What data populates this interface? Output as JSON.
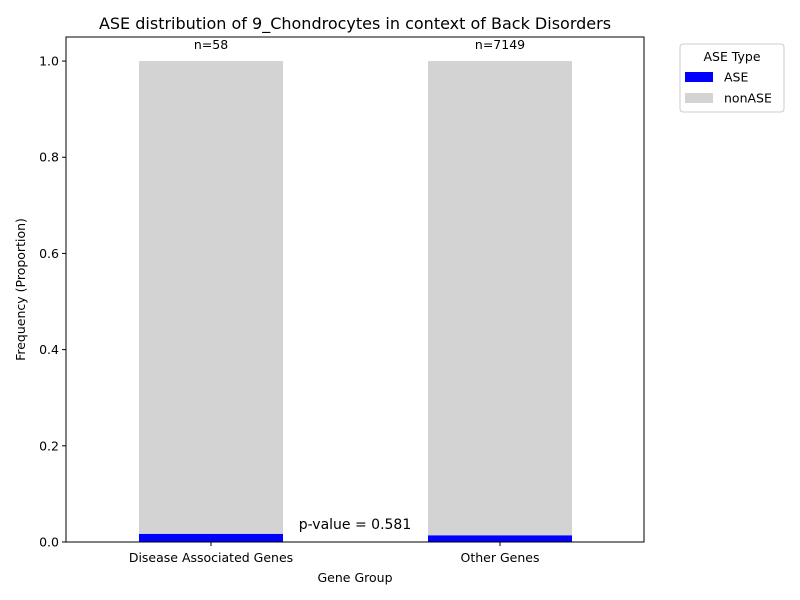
{
  "chart_data": {
    "type": "bar",
    "stacked": true,
    "title": "ASE distribution of 9_Chondrocytes in context of Back Disorders",
    "xlabel": "Gene Group",
    "ylabel": "Frequency (Proportion)",
    "categories": [
      "Disease Associated Genes",
      "Other Genes"
    ],
    "ylim": [
      0,
      1.05
    ],
    "yticks": [
      "0.0",
      "0.2",
      "0.4",
      "0.6",
      "0.8",
      "1.0"
    ],
    "series": [
      {
        "name": "ASE",
        "color": "#0000ff",
        "values": [
          0.017,
          0.014
        ]
      },
      {
        "name": "nonASE",
        "color": "#d3d3d3",
        "values": [
          0.983,
          0.986
        ]
      }
    ],
    "counts": [
      "n=58",
      "n=7149"
    ],
    "pvalue_text": "p-value = 0.581",
    "legend": {
      "title": "ASE Type",
      "placement": "outside-top-right"
    },
    "grid": false
  }
}
